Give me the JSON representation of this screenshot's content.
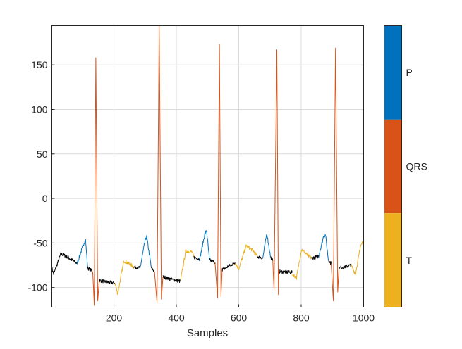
{
  "chart_data": {
    "type": "line",
    "title": "",
    "xlabel": "Samples",
    "ylabel": "",
    "xlim": [
      1,
      1000
    ],
    "ylim": [
      -122,
      194
    ],
    "grid": true,
    "xticks": [
      200,
      400,
      600,
      800,
      1000
    ],
    "yticks": [
      -100,
      -50,
      0,
      50,
      100,
      150
    ],
    "colors": {
      "none": "#000000",
      "P": "#0072BD",
      "QRS": "#D95319",
      "T": "#EDB120"
    },
    "colorbar": {
      "labels": [
        "P",
        "QRS",
        "T"
      ],
      "colors": [
        "#0072BD",
        "#D95319",
        "#EDB120"
      ]
    },
    "segments": [
      {
        "label": "none",
        "points": [
          [
            1,
            -78
          ],
          [
            7,
            -85
          ],
          [
            30,
            -62
          ],
          [
            48,
            -65
          ],
          [
            82,
            -73
          ]
        ]
      },
      {
        "label": "P",
        "points": [
          [
            82,
            -73
          ],
          [
            105,
            -49
          ],
          [
            109,
            -47
          ],
          [
            116,
            -78
          ]
        ]
      },
      {
        "label": "none",
        "points": [
          [
            116,
            -78
          ],
          [
            132,
            -82
          ]
        ]
      },
      {
        "label": "QRS",
        "points": [
          [
            132,
            -82
          ],
          [
            137,
            -120
          ],
          [
            142,
            158
          ],
          [
            148,
            -115
          ],
          [
            153,
            -92
          ]
        ]
      },
      {
        "label": "none",
        "points": [
          [
            153,
            -92
          ],
          [
            180,
            -94
          ],
          [
            203,
            -95
          ]
        ]
      },
      {
        "label": "T",
        "points": [
          [
            203,
            -95
          ],
          [
            212,
            -107
          ],
          [
            232,
            -70
          ],
          [
            252,
            -74
          ],
          [
            264,
            -77
          ]
        ]
      },
      {
        "label": "none",
        "points": [
          [
            264,
            -77
          ],
          [
            284,
            -78
          ]
        ]
      },
      {
        "label": "P",
        "points": [
          [
            284,
            -78
          ],
          [
            300,
            -47
          ],
          [
            305,
            -43
          ],
          [
            320,
            -78
          ]
        ]
      },
      {
        "label": "none",
        "points": [
          [
            320,
            -78
          ],
          [
            330,
            -82
          ]
        ]
      },
      {
        "label": "QRS",
        "points": [
          [
            330,
            -82
          ],
          [
            338,
            -117
          ],
          [
            345,
            194
          ],
          [
            352,
            -113
          ],
          [
            357,
            -88
          ]
        ]
      },
      {
        "label": "none",
        "points": [
          [
            357,
            -88
          ],
          [
            385,
            -91
          ],
          [
            413,
            -93
          ]
        ]
      },
      {
        "label": "T",
        "points": [
          [
            413,
            -93
          ],
          [
            430,
            -59
          ],
          [
            450,
            -60
          ],
          [
            456,
            -66
          ]
        ]
      },
      {
        "label": "none",
        "points": [
          [
            456,
            -66
          ],
          [
            475,
            -68
          ]
        ]
      },
      {
        "label": "P",
        "points": [
          [
            475,
            -68
          ],
          [
            491,
            -40
          ],
          [
            497,
            -36
          ],
          [
            506,
            -69
          ]
        ]
      },
      {
        "label": "none",
        "points": [
          [
            506,
            -69
          ],
          [
            524,
            -72
          ]
        ]
      },
      {
        "label": "QRS",
        "points": [
          [
            524,
            -72
          ],
          [
            532,
            -112
          ],
          [
            538,
            173
          ],
          [
            543,
            -110
          ],
          [
            547,
            -78
          ]
        ]
      },
      {
        "label": "none",
        "points": [
          [
            547,
            -80
          ],
          [
            588,
            -72
          ]
        ]
      },
      {
        "label": "T",
        "points": [
          [
            588,
            -72
          ],
          [
            600,
            -79
          ],
          [
            624,
            -53
          ],
          [
            647,
            -59
          ],
          [
            659,
            -65
          ]
        ]
      },
      {
        "label": "none",
        "points": [
          [
            659,
            -65
          ],
          [
            677,
            -67
          ]
        ]
      },
      {
        "label": "P",
        "points": [
          [
            677,
            -67
          ],
          [
            688,
            -43
          ],
          [
            690,
            -39
          ],
          [
            702,
            -66
          ]
        ]
      },
      {
        "label": "none",
        "points": [
          [
            702,
            -66
          ],
          [
            709,
            -70
          ]
        ]
      },
      {
        "label": "QRS",
        "points": [
          [
            709,
            -70
          ],
          [
            713,
            -103
          ],
          [
            722,
            167
          ],
          [
            727,
            -108
          ],
          [
            729,
            -80
          ]
        ]
      },
      {
        "label": "none",
        "points": [
          [
            729,
            -82
          ],
          [
            772,
            -83
          ]
        ]
      },
      {
        "label": "T",
        "points": [
          [
            772,
            -85
          ],
          [
            785,
            -89
          ],
          [
            801,
            -57
          ],
          [
            824,
            -65
          ],
          [
            833,
            -67
          ]
        ]
      },
      {
        "label": "none",
        "points": [
          [
            833,
            -67
          ],
          [
            856,
            -65
          ]
        ]
      },
      {
        "label": "P",
        "points": [
          [
            856,
            -65
          ],
          [
            872,
            -42
          ],
          [
            878,
            -41
          ],
          [
            887,
            -69
          ]
        ]
      },
      {
        "label": "none",
        "points": [
          [
            887,
            -69
          ],
          [
            896,
            -73
          ]
        ]
      },
      {
        "label": "QRS",
        "points": [
          [
            896,
            -73
          ],
          [
            903,
            -115
          ],
          [
            910,
            169
          ],
          [
            917,
            -105
          ],
          [
            921,
            -80
          ]
        ]
      },
      {
        "label": "none",
        "points": [
          [
            921,
            -78
          ],
          [
            960,
            -75
          ]
        ]
      },
      {
        "label": "T",
        "points": [
          [
            960,
            -75
          ],
          [
            974,
            -85
          ],
          [
            992,
            -50
          ],
          [
            1000,
            -48
          ]
        ]
      }
    ]
  }
}
